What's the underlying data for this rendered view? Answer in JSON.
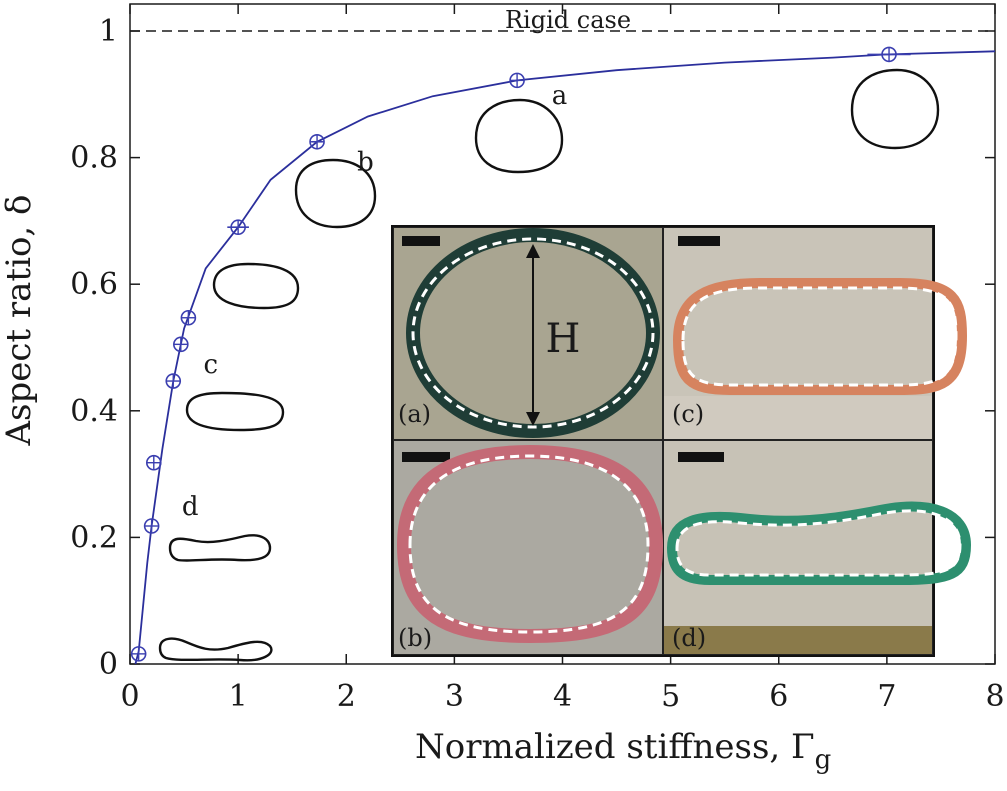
{
  "chart_data": {
    "type": "scatter",
    "xlabel": "Normalized stiffness, Γ",
    "xlabel_subscript": "g",
    "ylabel": "Aspect ratio, δ",
    "xlim": [
      0,
      8
    ],
    "ylim": [
      0,
      1.05
    ],
    "xticks": [
      "0",
      "1",
      "2",
      "3",
      "4",
      "5",
      "6",
      "7",
      "8"
    ],
    "yticks": [
      "0",
      "0.2",
      "0.4",
      "0.6",
      "0.8",
      "1"
    ],
    "reference_line": {
      "y": 1,
      "label": "Rigid case",
      "style": "dashed"
    },
    "series": [
      {
        "marker": "circle-plus",
        "x": [
          0.08,
          0.2,
          0.22,
          0.4,
          0.47,
          0.54,
          1.0,
          1.73,
          3.58,
          7.02
        ],
        "y": [
          0.016,
          0.218,
          0.318,
          0.447,
          0.505,
          0.547,
          0.69,
          0.825,
          0.922,
          0.963
        ],
        "xerr": [
          0,
          0,
          0,
          0,
          0,
          0,
          0.1,
          0.05,
          0,
          0.2
        ]
      },
      {
        "style": "line",
        "x": [
          0.05,
          0.08,
          0.12,
          0.16,
          0.2,
          0.3,
          0.4,
          0.5,
          0.7,
          1.0,
          1.3,
          1.73,
          2.2,
          2.8,
          3.58,
          4.5,
          5.5,
          6.5,
          7.0,
          8.0
        ],
        "y": [
          0.0,
          0.02,
          0.09,
          0.16,
          0.218,
          0.34,
          0.447,
          0.53,
          0.625,
          0.69,
          0.765,
          0.825,
          0.865,
          0.897,
          0.922,
          0.938,
          0.95,
          0.958,
          0.963,
          0.968
        ]
      }
    ],
    "annotations": [
      {
        "text": "a",
        "x": 3.9,
        "y": 0.885
      },
      {
        "text": "b",
        "x": 2.1,
        "y": 0.78
      },
      {
        "text": "c",
        "x": 0.68,
        "y": 0.46
      },
      {
        "text": "d",
        "x": 0.48,
        "y": 0.235
      }
    ],
    "inset": {
      "panels": [
        {
          "label": "(a)",
          "ring_color": "#1f3d36",
          "background": "#a9a591"
        },
        {
          "label": "(b)",
          "ring_color": "#c46a76",
          "background": "#aba9a1"
        },
        {
          "label": "(c)",
          "ring_color": "#d6835f",
          "background": "#c9c4b8"
        },
        {
          "label": "(d)",
          "ring_color": "#2d8f6f",
          "background": "#c7c2b6"
        }
      ],
      "dimension_label": "H"
    }
  }
}
